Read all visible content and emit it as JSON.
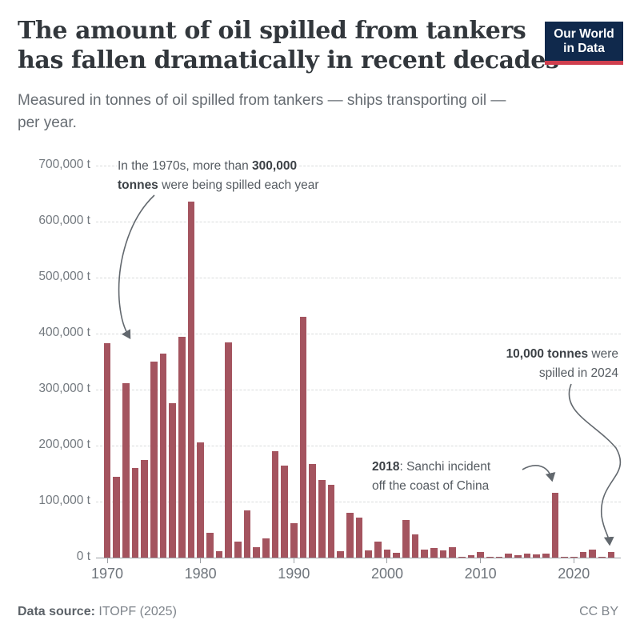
{
  "logo": {
    "line1": "Our World",
    "line2": "in Data",
    "bg_color": "#10294c",
    "accent_color": "#cf3e4e"
  },
  "chart_data": {
    "type": "bar",
    "title": "The amount of oil spilled from tankers has fallen dramatically in recent decades",
    "title_lines": [
      "The amount of oil spilled from tankers",
      "has fallen dramatically in recent decades"
    ],
    "subtitle": "Measured in tonnes of oil spilled from tankers — ships transporting oil — per year.",
    "subtitle_lines": [
      "Measured in tonnes of oil spilled from tankers — ships transporting oil —",
      "per year."
    ],
    "unit": "tonnes of oil",
    "bar_color": "#a4545f",
    "grid": "horizontal-dashed",
    "legend": "none",
    "ylim": [
      0,
      700000
    ],
    "ytick_interval": 100000,
    "yticks_labels": [
      "0 t",
      "100,000 t",
      "200,000 t",
      "300,000 t",
      "400,000 t",
      "500,000 t",
      "600,000 t",
      "700,000 t"
    ],
    "xticks_labels": [
      "1970",
      "1980",
      "1990",
      "2000",
      "2010",
      "2020"
    ],
    "x": [
      1970,
      1971,
      1972,
      1973,
      1974,
      1975,
      1976,
      1977,
      1978,
      1979,
      1980,
      1981,
      1982,
      1983,
      1984,
      1985,
      1986,
      1987,
      1988,
      1989,
      1990,
      1991,
      1992,
      1993,
      1994,
      1995,
      1996,
      1997,
      1998,
      1999,
      2000,
      2001,
      2002,
      2003,
      2004,
      2005,
      2006,
      2007,
      2008,
      2009,
      2010,
      2011,
      2012,
      2013,
      2014,
      2015,
      2016,
      2017,
      2018,
      2019,
      2020,
      2021,
      2022,
      2023,
      2024
    ],
    "values": [
      383000,
      145000,
      311000,
      160000,
      175000,
      350000,
      364000,
      276000,
      395000,
      636000,
      206000,
      45000,
      12000,
      384000,
      29000,
      85000,
      19000,
      35000,
      190000,
      164000,
      61000,
      430000,
      167000,
      139000,
      130000,
      12000,
      80000,
      72000,
      13000,
      29000,
      14000,
      8000,
      67000,
      42000,
      15000,
      17000,
      13000,
      18000,
      2000,
      4000,
      10000,
      2000,
      1000,
      7000,
      5000,
      7000,
      6000,
      7000,
      116000,
      1000,
      1000,
      10000,
      15000,
      2000,
      10000
    ],
    "annotations": {
      "seventies": {
        "l1_normal": "In the 1970s, more than ",
        "l1_bold": "300,000",
        "l2_bold": "tonnes",
        "l2_normal": " were being spilled each year"
      },
      "sanchi": {
        "l1_bold": "2018",
        "l1_normal": ": Sanchi incident",
        "l2_normal": "off the coast of China"
      },
      "y2024": {
        "l1_bold": "10,000 tonnes",
        "l1_normal": " were",
        "l2_normal": "spilled in 2024"
      }
    }
  },
  "footer": {
    "source_label": "Data source:",
    "source_value": "ITOPF (2025)",
    "license": "CC BY"
  }
}
